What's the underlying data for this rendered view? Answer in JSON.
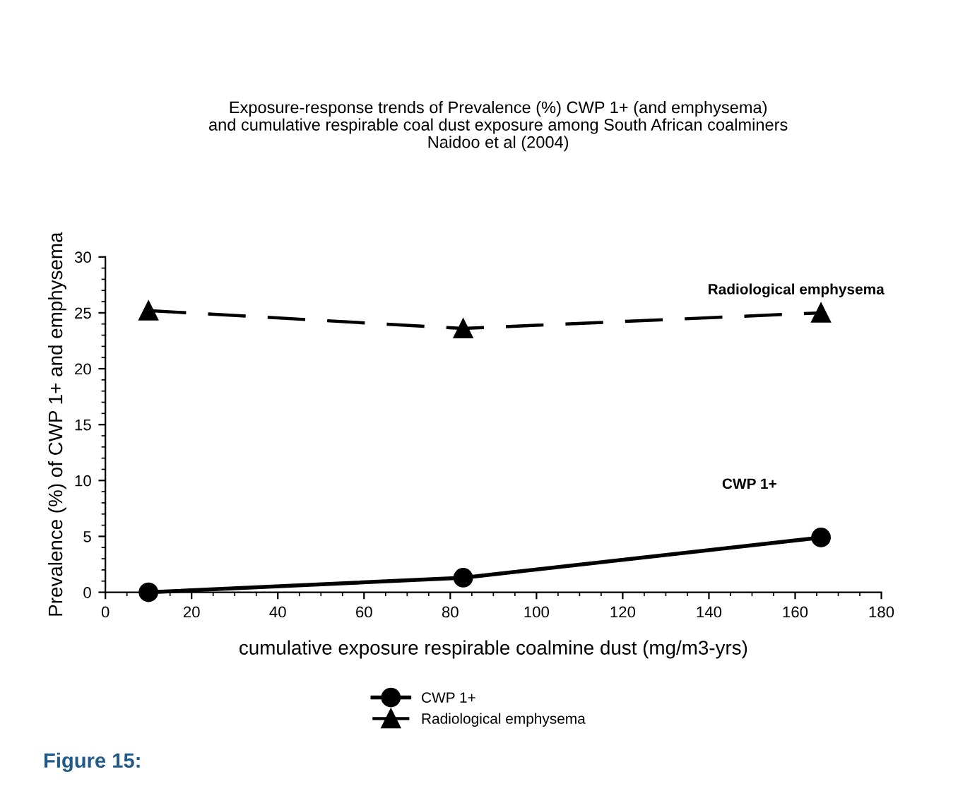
{
  "chart_data": {
    "type": "line",
    "title": "Exposure-response trends of Prevalence (%) CWP 1+ (and emphysema)\nand cumulative respirable coal dust exposure among South African coalminers\nNaidoo et al (2004)",
    "xlabel": "cumulative exposure respirable coalmine dust (mg/m3-yrs)",
    "ylabel": "Prevalence (%) of CWP 1+ and emphysema",
    "x": [
      10,
      83,
      166
    ],
    "series": [
      {
        "name": "CWP 1+",
        "color": "#000000",
        "values": [
          0,
          1.3,
          4.9
        ],
        "marker": "circle",
        "line_style": "solid"
      },
      {
        "name": "Radiological emphysema",
        "color": "#000000",
        "values": [
          25.2,
          23.6,
          25.0
        ],
        "marker": "triangle",
        "line_style": "dashed"
      }
    ],
    "xlim": [
      0,
      180
    ],
    "xticks": [
      0,
      20,
      40,
      60,
      80,
      100,
      120,
      140,
      160,
      180
    ],
    "ylim": [
      0,
      30
    ],
    "yticks": [
      0,
      5,
      10,
      15,
      20,
      25,
      30
    ],
    "grid": false,
    "legend": "bottom",
    "annotations": [
      "Radiological emphysema",
      "CWP 1+",
      "Figure 15:"
    ]
  }
}
